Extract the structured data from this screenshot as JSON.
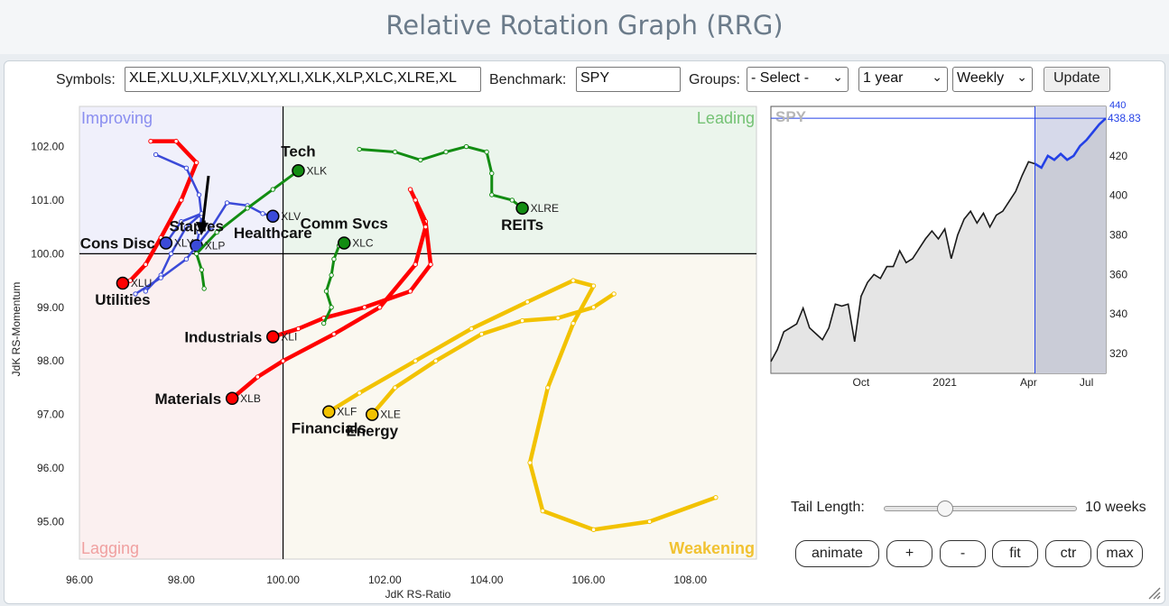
{
  "page": {
    "title": "Relative Rotation Graph (RRG)"
  },
  "controls": {
    "symbols_label": "Symbols:",
    "symbols_value": "XLE,XLU,XLF,XLV,XLY,XLI,XLK,XLP,XLC,XLRE,XL",
    "benchmark_label": "Benchmark:",
    "benchmark_value": "SPY",
    "groups_label": "Groups:",
    "groups_value": "- Select -",
    "period_value": "1 year",
    "frequency_value": "Weekly",
    "update_label": "Update"
  },
  "colors": {
    "improving_bg": "#f0f0fb",
    "leading_bg": "#ebf5ec",
    "weakening_bg": "#faf8f0",
    "lagging_bg": "#fbf0f0",
    "improving_text": "#8a8ef0",
    "leading_text": "#74c274",
    "weakening_text": "#f1c232",
    "lagging_text": "#f0a0a0",
    "red": "#ff0000",
    "blue": "#3b4ad8",
    "green": "#128c12",
    "gold": "#f2c200",
    "spy_line_pre": "#1a1a1a",
    "spy_line_post": "#2441e6"
  },
  "chart_data": [
    {
      "type": "scatter",
      "title": "Relative Rotation Graph (RRG)",
      "xlabel": "JdK RS-Ratio",
      "ylabel": "JdK RS-Momentum",
      "xlim": [
        96.0,
        109.3
      ],
      "ylim": [
        94.3,
        102.75
      ],
      "xticks": [
        96,
        98,
        100,
        102,
        104,
        106,
        108
      ],
      "xtick_labels": [
        "96.00",
        "98.00",
        "100.00",
        "102.00",
        "104.00",
        "106.00",
        "108.00"
      ],
      "yticks": [
        95,
        96,
        97,
        98,
        99,
        100,
        101,
        102
      ],
      "ytick_labels": [
        "95.00",
        "96.00",
        "97.00",
        "98.00",
        "99.00",
        "100.00",
        "101.00",
        "102.00"
      ],
      "quadrants": {
        "improving": "Improving",
        "leading": "Leading",
        "weakening": "Weakening",
        "lagging": "Lagging"
      },
      "series": [
        {
          "name": "Utilities",
          "symbol": "XLU",
          "color": "red",
          "label_pos": "below",
          "tail": [
            [
              97.4,
              102.1
            ],
            [
              97.9,
              102.1
            ],
            [
              98.3,
              101.7
            ],
            [
              98.0,
              101.0
            ],
            [
              97.6,
              100.3
            ],
            [
              97.3,
              99.8
            ],
            [
              97.0,
              99.5
            ],
            [
              96.85,
              99.45
            ]
          ]
        },
        {
          "name": "Industrials",
          "symbol": "XLI",
          "color": "red",
          "label_pos": "left",
          "tail": [
            [
              102.5,
              101.2
            ],
            [
              102.8,
              100.6
            ],
            [
              102.9,
              99.8
            ],
            [
              102.5,
              99.3
            ],
            [
              101.6,
              99.0
            ],
            [
              100.8,
              98.8
            ],
            [
              100.3,
              98.6
            ],
            [
              99.8,
              98.45
            ]
          ]
        },
        {
          "name": "Materials",
          "symbol": "XLB",
          "color": "red",
          "label_pos": "left",
          "tail": [
            [
              102.6,
              101.0
            ],
            [
              102.8,
              100.5
            ],
            [
              102.6,
              99.8
            ],
            [
              101.9,
              99.0
            ],
            [
              101.0,
              98.5
            ],
            [
              100.0,
              98.0
            ],
            [
              99.5,
              97.7
            ],
            [
              99.0,
              97.3
            ]
          ]
        },
        {
          "name": "Staples",
          "symbol": "XLP",
          "color": "blue",
          "label_pos": "above",
          "tail": [
            [
              97.5,
              101.85
            ],
            [
              98.1,
              101.6
            ],
            [
              98.35,
              101.1
            ],
            [
              98.4,
              100.7
            ],
            [
              98.35,
              100.4
            ],
            [
              98.3,
              100.15
            ]
          ]
        },
        {
          "name": "Cons Disc",
          "symbol": "XLY",
          "color": "blue",
          "label_pos": "left",
          "tail": [
            [
              97.3,
              99.3
            ],
            [
              97.6,
              99.6
            ],
            [
              97.8,
              100.0
            ],
            [
              98.1,
              100.5
            ],
            [
              98.4,
              100.75
            ],
            [
              98.0,
              100.6
            ],
            [
              97.7,
              100.2
            ]
          ]
        },
        {
          "name": "Healthcare",
          "symbol": "XLV",
          "color": "blue",
          "label_pos": "below",
          "tail": [
            [
              97.1,
              99.25
            ],
            [
              97.6,
              99.55
            ],
            [
              98.1,
              99.9
            ],
            [
              98.6,
              100.5
            ],
            [
              98.9,
              100.95
            ],
            [
              99.3,
              100.9
            ],
            [
              99.6,
              100.75
            ],
            [
              99.8,
              100.7
            ]
          ]
        },
        {
          "name": "Tech",
          "symbol": "XLK",
          "color": "green",
          "label_pos": "above",
          "tail": [
            [
              98.45,
              99.35
            ],
            [
              98.4,
              99.7
            ],
            [
              98.3,
              100.0
            ],
            [
              98.7,
              100.4
            ],
            [
              99.3,
              100.85
            ],
            [
              99.8,
              101.2
            ],
            [
              100.3,
              101.55
            ]
          ]
        },
        {
          "name": "Comm Svcs",
          "symbol": "XLC",
          "color": "green",
          "label_pos": "above",
          "tail": [
            [
              100.8,
              98.7
            ],
            [
              100.95,
              99.0
            ],
            [
              100.85,
              99.3
            ],
            [
              100.95,
              99.6
            ],
            [
              101.0,
              99.9
            ],
            [
              101.1,
              100.15
            ],
            [
              101.2,
              100.2
            ]
          ]
        },
        {
          "name": "REITs",
          "symbol": "XLRE",
          "color": "green",
          "label_pos": "below",
          "tail": [
            [
              101.5,
              101.95
            ],
            [
              102.2,
              101.9
            ],
            [
              102.7,
              101.75
            ],
            [
              103.2,
              101.9
            ],
            [
              103.6,
              102.0
            ],
            [
              104.0,
              101.9
            ],
            [
              104.1,
              101.5
            ],
            [
              104.1,
              101.1
            ],
            [
              104.5,
              101.0
            ],
            [
              104.7,
              100.85
            ]
          ]
        },
        {
          "name": "Financials",
          "symbol": "XLF",
          "color": "gold",
          "label_pos": "below",
          "tail": [
            [
              108.5,
              95.45
            ],
            [
              107.2,
              95.0
            ],
            [
              106.1,
              94.85
            ],
            [
              105.1,
              95.2
            ],
            [
              104.85,
              96.1
            ],
            [
              105.2,
              97.5
            ],
            [
              105.7,
              98.7
            ],
            [
              106.1,
              99.4
            ],
            [
              105.7,
              99.5
            ],
            [
              104.8,
              99.1
            ],
            [
              103.7,
              98.6
            ],
            [
              102.6,
              98.0
            ],
            [
              101.5,
              97.4
            ],
            [
              100.9,
              97.05
            ]
          ]
        },
        {
          "name": "Energy",
          "symbol": "XLE",
          "color": "gold",
          "label_pos": "below",
          "tail": [
            [
              106.5,
              99.25
            ],
            [
              106.1,
              99.0
            ],
            [
              105.4,
              98.8
            ],
            [
              104.7,
              98.75
            ],
            [
              103.9,
              98.5
            ],
            [
              103.0,
              98.0
            ],
            [
              102.2,
              97.5
            ],
            [
              101.75,
              97.0
            ]
          ]
        }
      ],
      "annotations": [
        {
          "type": "arrow",
          "target": "XLP",
          "color": "#000000"
        }
      ]
    },
    {
      "type": "area",
      "title": "SPY",
      "last_value_label": "438.83",
      "last_value_label_partial": "440",
      "ylim": [
        310,
        445
      ],
      "yticks": [
        320,
        340,
        360,
        380,
        400,
        420
      ],
      "ytick_labels": [
        "320",
        "340",
        "360",
        "380",
        "400",
        "420"
      ],
      "xtick_labels": [
        "Oct",
        "2021",
        "Apr",
        "Jul"
      ],
      "x_week_index": [
        0,
        1,
        2,
        3,
        4,
        5,
        6,
        7,
        8,
        9,
        10,
        11,
        12,
        13,
        14,
        15,
        16,
        17,
        18,
        19,
        20,
        21,
        22,
        23,
        24,
        25,
        26,
        27,
        28,
        29,
        30,
        31,
        32,
        33,
        34,
        35,
        36,
        37,
        38,
        39,
        40,
        41,
        42,
        43,
        44,
        45,
        46,
        47,
        48,
        49,
        50,
        51,
        52
      ],
      "values": [
        316,
        322,
        331,
        333,
        335,
        343,
        333,
        330,
        327,
        333,
        345,
        344,
        345,
        326,
        349,
        356,
        360,
        358,
        364,
        364,
        372,
        366,
        368,
        373,
        378,
        382,
        378,
        383,
        368,
        380,
        388,
        392,
        386,
        391,
        384,
        390,
        392,
        397,
        402,
        410,
        417,
        416,
        414,
        420,
        418,
        421,
        418,
        420,
        425,
        428,
        432,
        436,
        439
      ],
      "highlight_start_index": 41
    }
  ],
  "tail": {
    "label": "Tail Length:",
    "value_label": "10 weeks",
    "fraction": 0.3
  },
  "buttons": {
    "animate": "animate",
    "plus": "+",
    "minus": "-",
    "fit": "fit",
    "ctr": "ctr",
    "max": "max"
  }
}
